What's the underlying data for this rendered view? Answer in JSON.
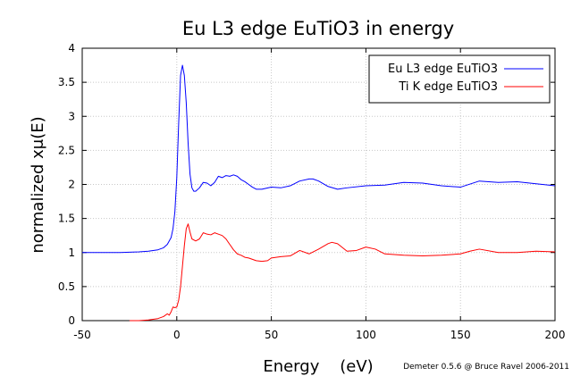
{
  "chart_data": {
    "type": "line",
    "title": "Eu L3 edge EuTiO3 in energy",
    "xlabel": "Energy    (eV)",
    "ylabel": "normalized xμ(E)",
    "xlim": [
      -50,
      200
    ],
    "ylim": [
      0,
      4
    ],
    "xticks": [
      "-50",
      "0",
      "50",
      "100",
      "150",
      "200"
    ],
    "yticks": [
      "0",
      "0.5",
      "1",
      "1.5",
      "2",
      "2.5",
      "3",
      "3.5",
      "4"
    ],
    "grid": true,
    "legend_position": "top-right",
    "series": [
      {
        "name": "Eu L3 edge EuTiO3",
        "color": "#0000ff",
        "x": [
          -50,
          -30,
          -20,
          -15,
          -10,
          -7,
          -5,
          -3,
          -2,
          -1,
          0,
          1,
          2,
          3,
          4,
          5,
          6,
          7,
          8,
          9,
          10,
          12,
          14,
          16,
          18,
          20,
          22,
          24,
          26,
          28,
          30,
          32,
          34,
          36,
          38,
          40,
          42,
          45,
          50,
          55,
          60,
          65,
          70,
          72,
          75,
          80,
          85,
          90,
          100,
          110,
          120,
          130,
          140,
          150,
          160,
          170,
          180,
          190,
          200
        ],
        "y": [
          1.0,
          1.0,
          1.01,
          1.02,
          1.04,
          1.07,
          1.12,
          1.22,
          1.35,
          1.6,
          2.1,
          2.9,
          3.6,
          3.75,
          3.6,
          3.2,
          2.6,
          2.15,
          1.95,
          1.9,
          1.9,
          1.95,
          2.03,
          2.02,
          1.98,
          2.03,
          2.12,
          2.1,
          2.13,
          2.12,
          2.14,
          2.12,
          2.07,
          2.04,
          2.0,
          1.96,
          1.93,
          1.93,
          1.96,
          1.95,
          1.98,
          2.05,
          2.08,
          2.08,
          2.05,
          1.97,
          1.93,
          1.95,
          1.98,
          1.99,
          2.03,
          2.02,
          1.98,
          1.96,
          2.05,
          2.03,
          2.04,
          2.01,
          1.98
        ]
      },
      {
        "name": "Ti K edge EuTiO3",
        "color": "#ff0000",
        "x": [
          -25,
          -20,
          -15,
          -10,
          -7,
          -5,
          -4,
          -3,
          -2,
          -1,
          0,
          1,
          2,
          3,
          4,
          5,
          6,
          7,
          8,
          10,
          12,
          14,
          16,
          18,
          20,
          22,
          24,
          26,
          28,
          30,
          32,
          34,
          36,
          38,
          40,
          42,
          45,
          48,
          50,
          55,
          60,
          65,
          70,
          75,
          80,
          82,
          85,
          90,
          95,
          100,
          105,
          110,
          120,
          130,
          140,
          150,
          155,
          160,
          170,
          180,
          190,
          200
        ],
        "y": [
          0.0,
          0.0,
          0.01,
          0.03,
          0.06,
          0.1,
          0.08,
          0.13,
          0.2,
          0.19,
          0.2,
          0.3,
          0.5,
          0.8,
          1.1,
          1.35,
          1.42,
          1.3,
          1.2,
          1.17,
          1.2,
          1.29,
          1.27,
          1.26,
          1.29,
          1.27,
          1.25,
          1.2,
          1.12,
          1.04,
          0.98,
          0.96,
          0.93,
          0.92,
          0.9,
          0.88,
          0.87,
          0.88,
          0.92,
          0.94,
          0.95,
          1.03,
          0.98,
          1.05,
          1.13,
          1.15,
          1.13,
          1.02,
          1.03,
          1.08,
          1.05,
          0.98,
          0.96,
          0.95,
          0.96,
          0.98,
          1.02,
          1.05,
          1.0,
          1.0,
          1.02,
          1.01
        ]
      }
    ]
  },
  "credit": "Demeter 0.5.6 @ Bruce Ravel 2006-2011"
}
